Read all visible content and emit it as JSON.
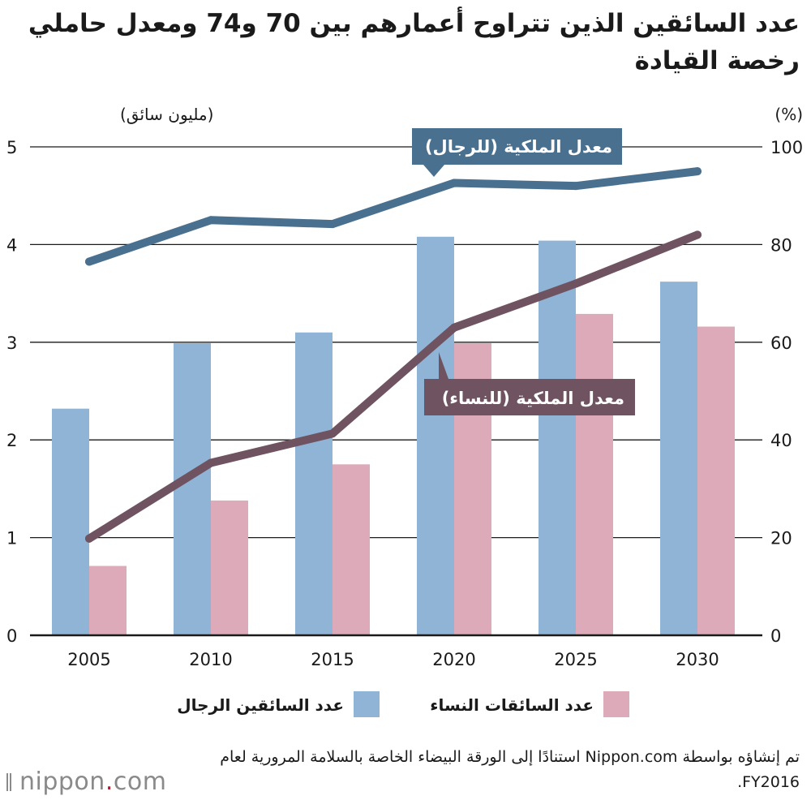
{
  "title": "عدد السائقين الذين تتراوح أعمارهم بين 70 و74 ومعدل حاملي رخصة القيادة",
  "source": "تم إنشاؤه بواسطة Nippon.com استنادًا إلى الورقة البيضاء الخاصة بالسلامة المرورية لعام FY2016.",
  "logo": {
    "word": "nippon",
    "dot": ".",
    "tld": "com"
  },
  "colors": {
    "men_bar": "#8fb4d6",
    "women_bar": "#ddaab9",
    "men_line": "#4a7090",
    "women_line": "#6f5360"
  },
  "chart_data": {
    "type": "bar",
    "categories": [
      "2005",
      "2010",
      "2015",
      "2020",
      "2025",
      "2030"
    ],
    "series": [
      {
        "name": "عدد السائقين الرجال",
        "kind": "bar",
        "axis": "left",
        "values": [
          2.32,
          2.99,
          3.1,
          4.08,
          4.04,
          3.62
        ]
      },
      {
        "name": "عدد السائقات النساء",
        "kind": "bar",
        "axis": "left",
        "values": [
          0.71,
          1.38,
          1.75,
          2.99,
          3.29,
          3.16
        ]
      },
      {
        "name": "معدل الملكية (للرجال)",
        "kind": "line",
        "axis": "right",
        "values": [
          76.5,
          85.0,
          84.2,
          92.6,
          92.0,
          95.0
        ]
      },
      {
        "name": "معدل الملكية (للنساء)",
        "kind": "line",
        "axis": "right",
        "values": [
          19.8,
          35.3,
          41.3,
          63.0,
          72.0,
          82.0
        ]
      }
    ],
    "left_axis": {
      "label": "(مليون سائق)",
      "ticks": [
        "0",
        "1",
        "2",
        "3",
        "4",
        "5"
      ],
      "ylim": [
        0,
        5
      ]
    },
    "right_axis": {
      "label": "(%)",
      "ticks": [
        "0",
        "20",
        "40",
        "60",
        "80",
        "100"
      ],
      "ylim": [
        0,
        100
      ]
    },
    "callouts": {
      "men": "معدل الملكية (للرجال)",
      "women": "معدل الملكية (للنساء)"
    },
    "legend": {
      "women": "عدد السائقات النساء",
      "men": "عدد السائقين الرجال",
      "position": "bottom"
    },
    "grid": true
  }
}
